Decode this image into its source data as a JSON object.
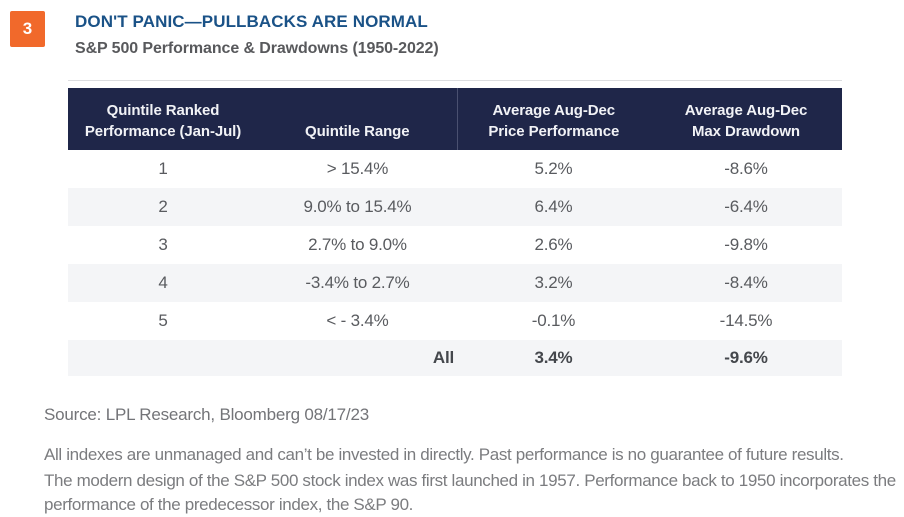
{
  "figure_number": "3",
  "header": {
    "title": "DON'T PANIC—PULLBACKS ARE NORMAL",
    "subtitle": "S&P 500 Performance & Drawdowns (1950-2022)"
  },
  "table": {
    "columns": [
      {
        "line1": "Quintile Ranked",
        "line2": "Performance (Jan-Jul)"
      },
      {
        "line1": "",
        "line2": "Quintile Range"
      },
      {
        "line1": "Average Aug-Dec",
        "line2": "Price Performance"
      },
      {
        "line1": "Average Aug-Dec",
        "line2": "Max Drawdown"
      }
    ]
  },
  "chart_data": {
    "type": "table",
    "title": "DON'T PANIC—PULLBACKS ARE NORMAL",
    "subtitle": "S&P 500 Performance & Drawdowns (1950-2022)",
    "columns": [
      "Quintile Ranked Performance (Jan-Jul)",
      "Quintile Range",
      "Average Aug-Dec Price Performance",
      "Average Aug-Dec Max Drawdown"
    ],
    "rows": [
      [
        "1",
        "> 15.4%",
        "5.2%",
        "-8.6%"
      ],
      [
        "2",
        "9.0% to 15.4%",
        "6.4%",
        "-6.4%"
      ],
      [
        "3",
        "2.7% to 9.0%",
        "2.6%",
        "-9.8%"
      ],
      [
        "4",
        "-3.4% to 2.7%",
        "3.2%",
        "-8.4%"
      ],
      [
        "5",
        "< - 3.4%",
        "-0.1%",
        "-14.5%"
      ]
    ],
    "summary": [
      "All",
      "3.4%",
      "-9.6%"
    ]
  },
  "footer": {
    "source": "Source: LPL Research, Bloomberg 08/17/23",
    "disclaimer1": "All indexes are unmanaged and can’t be invested in directly. Past performance is no guarantee of future results.",
    "disclaimer2": "The modern design of the S&P 500 stock index was first launched in 1957. Performance back to 1950 incorporates the performance of the predecessor index, the S&P 90."
  },
  "colors": {
    "accent_orange": "#f1692b",
    "title_blue": "#1a5287",
    "header_navy": "#1f2649",
    "stripe_gray": "#f4f5f7"
  }
}
